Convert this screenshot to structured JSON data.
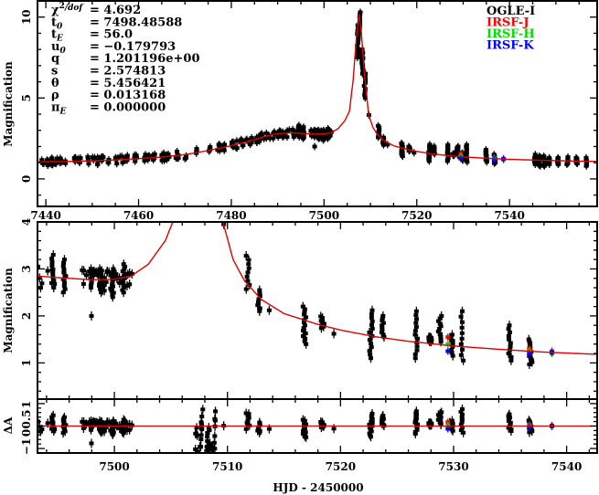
{
  "chart_data": {
    "type": "scatter",
    "title": "",
    "xlabel": "HJD - 2450000",
    "ylabel": "Magnification",
    "resid_label": "ΔA",
    "params": [
      {
        "sym": "χ",
        "sup": "2",
        "sub": "/dof",
        "value": "= 4.692"
      },
      {
        "sym": "t",
        "sup": "",
        "sub": "0",
        "value": "= 7498.48588"
      },
      {
        "sym": "t",
        "sup": "",
        "sub": "E",
        "value": "= 56.0"
      },
      {
        "sym": "u",
        "sup": "",
        "sub": "0",
        "value": "= −0.179793"
      },
      {
        "sym": "q",
        "sup": "",
        "sub": "",
        "value": "= 1.201196e+00"
      },
      {
        "sym": "s",
        "sup": "",
        "sub": "",
        "value": "= 2.574813"
      },
      {
        "sym": "θ",
        "sup": "",
        "sub": "",
        "value": "= 5.456421"
      },
      {
        "sym": "ρ",
        "sup": "",
        "sub": "",
        "value": "= 0.013168"
      },
      {
        "sym": "π",
        "sup": "",
        "sub": "E",
        "value": "= 0.000000"
      }
    ],
    "legend": [
      {
        "name": "OGLE-I",
        "color": "#000000"
      },
      {
        "name": "IRSF-J",
        "color": "#ff0000"
      },
      {
        "name": "IRSF-H",
        "color": "#00dd00"
      },
      {
        "name": "IRSF-K",
        "color": "#0000ff"
      }
    ],
    "model_color": "#dd0000",
    "model": {
      "x": [
        7438,
        7445,
        7450,
        7455,
        7460,
        7465,
        7470,
        7475,
        7480,
        7484,
        7487,
        7490,
        7493,
        7496,
        7498,
        7500,
        7501.5,
        7503,
        7504.5,
        7505.5,
        7506.3,
        7507,
        7507.5,
        7508,
        7508.7,
        7509.6,
        7510.5,
        7511.5,
        7513,
        7515,
        7518,
        7520,
        7523,
        7526,
        7530,
        7534,
        7538,
        7542,
        7548,
        7558
      ],
      "y": [
        1.05,
        1.08,
        1.12,
        1.17,
        1.25,
        1.35,
        1.5,
        1.75,
        2.05,
        2.35,
        2.6,
        2.8,
        2.85,
        2.8,
        2.77,
        2.78,
        2.85,
        3.1,
        3.6,
        4.2,
        6.2,
        8.8,
        10.2,
        9.2,
        6.5,
        4.0,
        3.2,
        2.75,
        2.35,
        2.05,
        1.82,
        1.7,
        1.56,
        1.46,
        1.36,
        1.29,
        1.23,
        1.19,
        1.14,
        1.08
      ]
    },
    "ogle_visits_top": [
      7439,
      7440,
      7441,
      7442,
      7443,
      7444,
      7446,
      7447,
      7449,
      7450,
      7451,
      7452,
      7453,
      7455,
      7456,
      7457,
      7459,
      7461,
      7462,
      7463,
      7465,
      7466,
      7468,
      7470,
      7472,
      7475,
      7477,
      7478,
      7480,
      7481,
      7482,
      7483,
      7484,
      7485,
      7486,
      7487,
      7488,
      7489,
      7490,
      7491,
      7492,
      7493,
      7494,
      7497,
      7498,
      7499,
      7500,
      7501
    ],
    "clusters": [
      {
        "x": 7494.6,
        "lo": 2.6,
        "hi": 3.3
      },
      {
        "x": 7495.6,
        "lo": 2.5,
        "hi": 3.2
      },
      {
        "x": 7497.9,
        "lo": 2.6,
        "hi": 3.0
      },
      {
        "x": 7497.9,
        "lo": 2.0,
        "hi": 2.0
      },
      {
        "x": 7498.8,
        "lo": 2.5,
        "hi": 3.0
      },
      {
        "x": 7499.8,
        "lo": 2.4,
        "hi": 3.0
      },
      {
        "x": 7500.8,
        "lo": 2.5,
        "hi": 3.1
      },
      {
        "x": 7507.3,
        "lo": 7.5,
        "hi": 9.5
      },
      {
        "x": 7507.7,
        "lo": 9.0,
        "hi": 10.3
      },
      {
        "x": 7508.3,
        "lo": 6.5,
        "hi": 8.0
      },
      {
        "x": 7508.8,
        "lo": 5.0,
        "hi": 6.5
      },
      {
        "x": 7509.8,
        "lo": 3.95,
        "hi": 3.95
      },
      {
        "x": 7511.8,
        "lo": 2.57,
        "hi": 3.28
      },
      {
        "x": 7512.8,
        "lo": 2.1,
        "hi": 2.55
      },
      {
        "x": 7513.8,
        "lo": 2.12,
        "hi": 2.12
      },
      {
        "x": 7516.8,
        "lo": 1.4,
        "hi": 2.2
      },
      {
        "x": 7518.4,
        "lo": 1.74,
        "hi": 1.99
      },
      {
        "x": 7519.4,
        "lo": 1.62,
        "hi": 1.62
      },
      {
        "x": 7522.7,
        "lo": 1.1,
        "hi": 2.12
      },
      {
        "x": 7523.8,
        "lo": 1.55,
        "hi": 2.0
      },
      {
        "x": 7526.7,
        "lo": 1.1,
        "hi": 2.1
      },
      {
        "x": 7527.9,
        "lo": 1.45,
        "hi": 1.55
      },
      {
        "x": 7528.8,
        "lo": 1.45,
        "hi": 2.0
      },
      {
        "x": 7529.8,
        "lo": 1.15,
        "hi": 1.6
      },
      {
        "x": 7530.8,
        "lo": 1.05,
        "hi": 2.1
      },
      {
        "x": 7535.0,
        "lo": 1.05,
        "hi": 1.8
      },
      {
        "x": 7536.8,
        "lo": 0.97,
        "hi": 1.5
      },
      {
        "x": 7545.5,
        "lo": 0.9,
        "hi": 1.5
      },
      {
        "x": 7546.5,
        "lo": 0.8,
        "hi": 1.4
      },
      {
        "x": 7547.5,
        "lo": 0.8,
        "hi": 1.4
      },
      {
        "x": 7548.5,
        "lo": 0.9,
        "hi": 1.3
      },
      {
        "x": 7550.5,
        "lo": 0.9,
        "hi": 1.3
      },
      {
        "x": 7552.5,
        "lo": 0.9,
        "hi": 1.35
      },
      {
        "x": 7554.5,
        "lo": 0.95,
        "hi": 1.3
      },
      {
        "x": 7556.5,
        "lo": 0.8,
        "hi": 1.3
      }
    ],
    "irsf": [
      {
        "band": "J",
        "points": [
          [
            7529.5,
            1.55
          ],
          [
            7536.7,
            1.3
          ],
          [
            7538.7,
            1.25
          ]
        ]
      },
      {
        "band": "H",
        "points": [
          [
            7529.5,
            1.4
          ],
          [
            7536.7,
            1.25
          ],
          [
            7538.7,
            1.2
          ]
        ]
      },
      {
        "band": "K",
        "points": [
          [
            7529.5,
            1.25
          ],
          [
            7536.7,
            1.2
          ],
          [
            7538.7,
            1.22
          ]
        ]
      }
    ],
    "top_panel": {
      "xlim": [
        7438.2,
        7558.9
      ],
      "ylim": [
        -1.7,
        11.0
      ],
      "xticks": [
        "7440",
        "7460",
        "7480",
        "7500",
        "7520",
        "7540"
      ],
      "yticks": [
        "0",
        "5",
        "10"
      ]
    },
    "mid_panel": {
      "xlim": [
        7493.2,
        7542.7
      ],
      "ylim": [
        0.23,
        4.0
      ],
      "yticks": [
        "1",
        "2",
        "3",
        "4"
      ]
    },
    "resid_panel": {
      "ylim": [
        -1.2,
        1.2
      ],
      "yticks": [
        "−1",
        "0",
        "0.5",
        "1"
      ],
      "xticks": [
        "7500",
        "7510",
        "7520",
        "7530",
        "7540"
      ]
    }
  }
}
